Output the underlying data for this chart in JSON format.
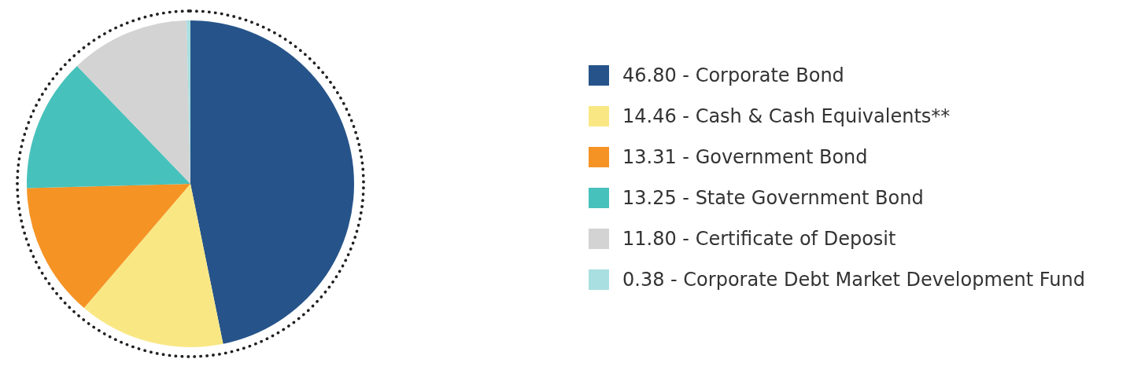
{
  "chart_data": {
    "type": "pie",
    "categories": [
      "Corporate Bond",
      "Cash & Cash Equivalents**",
      "Government Bond",
      "State Government Bond",
      "Certificate of Deposit",
      "Corporate Debt Market Development Fund"
    ],
    "values": [
      46.8,
      14.46,
      13.31,
      13.25,
      11.8,
      0.38
    ],
    "value_labels": [
      "46.80",
      "14.46",
      "13.31",
      "13.25",
      "11.80",
      "0.38"
    ],
    "colors": [
      "#26548a",
      "#f9e784",
      "#f59324",
      "#47c1bb",
      "#d3d3d3",
      "#a9dfe0"
    ],
    "legend": "right"
  }
}
